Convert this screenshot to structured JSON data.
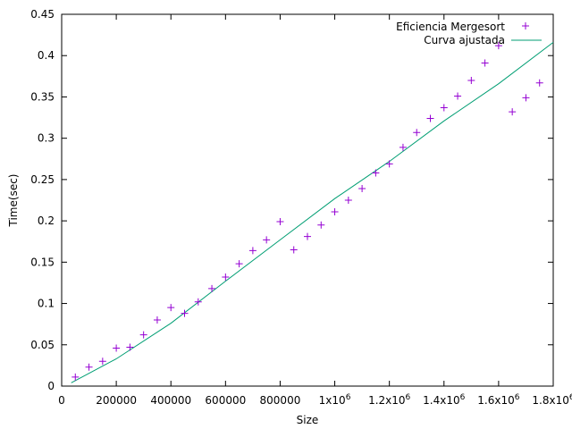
{
  "chart_data": {
    "type": "scatter",
    "xlabel": "Size",
    "ylabel": "Time(sec)",
    "xlim": [
      0,
      1800000
    ],
    "ylim": [
      0,
      0.45
    ],
    "x_ticks": [
      {
        "value": 0,
        "label": "0"
      },
      {
        "value": 200000,
        "label": "200000"
      },
      {
        "value": 400000,
        "label": "400000"
      },
      {
        "value": 600000,
        "label": "600000"
      },
      {
        "value": 800000,
        "label": "800000"
      },
      {
        "value": 1000000,
        "base": "1x10",
        "exp": "6"
      },
      {
        "value": 1200000,
        "base": "1.2x10",
        "exp": "6"
      },
      {
        "value": 1400000,
        "base": "1.4x10",
        "exp": "6"
      },
      {
        "value": 1600000,
        "base": "1.6x10",
        "exp": "6"
      },
      {
        "value": 1800000,
        "base": "1.8x10",
        "exp": "6"
      }
    ],
    "y_ticks": [
      "0",
      "0.05",
      "0.1",
      "0.15",
      "0.2",
      "0.25",
      "0.3",
      "0.35",
      "0.4",
      "0.45"
    ],
    "legend_position": "top-right",
    "grid": false,
    "series": [
      {
        "name": "Eficiencia Mergesort",
        "kind": "points",
        "marker": "+",
        "color": "#9400d3",
        "x": [
          50000,
          100000,
          150000,
          200000,
          250000,
          300000,
          350000,
          400000,
          450000,
          500000,
          550000,
          600000,
          650000,
          700000,
          750000,
          800000,
          850000,
          900000,
          950000,
          1000000,
          1050000,
          1100000,
          1150000,
          1200000,
          1250000,
          1300000,
          1350000,
          1400000,
          1450000,
          1500000,
          1550000,
          1600000,
          1650000,
          1700000,
          1750000
        ],
        "y": [
          0.011,
          0.023,
          0.03,
          0.046,
          0.047,
          0.062,
          0.08,
          0.095,
          0.088,
          0.102,
          0.118,
          0.132,
          0.148,
          0.164,
          0.177,
          0.199,
          0.165,
          0.181,
          0.195,
          0.211,
          0.225,
          0.239,
          0.258,
          0.269,
          0.289,
          0.307,
          0.324,
          0.337,
          0.351,
          0.37,
          0.391,
          0.412,
          0.332,
          0.349,
          0.367
        ]
      },
      {
        "name": "Curva ajustada",
        "kind": "line",
        "color": "#009e73",
        "x": [
          35000,
          200000,
          400000,
          600000,
          800000,
          1000000,
          1200000,
          1400000,
          1600000,
          1800000
        ],
        "y": [
          0.004,
          0.033,
          0.076,
          0.127,
          0.177,
          0.227,
          0.272,
          0.321,
          0.366,
          0.416
        ]
      }
    ]
  }
}
